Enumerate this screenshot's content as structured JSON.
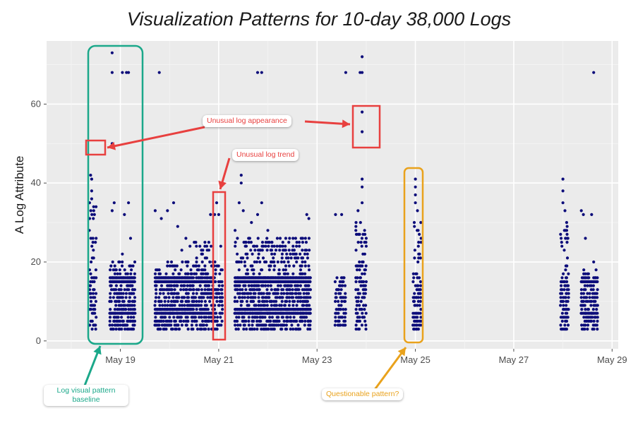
{
  "chart_data": {
    "type": "scatter",
    "title": "Visualization Patterns for 10-day 38,000 Logs",
    "xlabel": "",
    "ylabel": "A Log Attribute",
    "x_axis": {
      "type": "date",
      "range": [
        "2023-05-17T12:00",
        "2023-05-29T03:00"
      ],
      "ticks": [
        "May 19",
        "May 21",
        "May 23",
        "May 25",
        "May 27",
        "May 29"
      ],
      "tick_dates": [
        "2023-05-19",
        "2023-05-21",
        "2023-05-23",
        "2023-05-25",
        "2023-05-27",
        "2023-05-29"
      ]
    },
    "y_axis": {
      "range": [
        -2,
        76
      ],
      "ticks": [
        0,
        20,
        40,
        60
      ]
    },
    "grid": true,
    "point_color": "#0c0c7a",
    "point_groups": [
      {
        "x_start": "2023-05-18T09:00",
        "x_end": "2023-05-18T12:00",
        "y_min": 3,
        "y_max": 35,
        "dense_bands": []
      },
      {
        "x_start": "2023-05-18T19:00",
        "x_end": "2023-05-19T07:00",
        "y_min": 3,
        "y_max": 20,
        "dense_bands": [
          7,
          15,
          16
        ]
      },
      {
        "x_start": "2023-05-19T17:00",
        "x_end": "2023-05-20T12:00",
        "y_min": 3,
        "y_max": 20,
        "dense_bands": [
          7,
          8,
          15,
          16
        ]
      },
      {
        "x_start": "2023-05-20T12:00",
        "x_end": "2023-05-20T21:00",
        "y_min": 3,
        "y_max": 25,
        "dense_bands": [
          7,
          15
        ]
      },
      {
        "x_start": "2023-05-20T22:00",
        "x_end": "2023-05-21T02:00",
        "y_min": 3,
        "y_max": 20,
        "dense_bands": []
      },
      {
        "x_start": "2023-05-21T08:00",
        "x_end": "2023-05-22T21:00",
        "y_min": 3,
        "y_max": 26,
        "dense_bands": [
          7,
          8,
          15,
          16
        ]
      },
      {
        "x_start": "2023-05-23T09:00",
        "x_end": "2023-05-23T14:00",
        "y_min": 4,
        "y_max": 16,
        "dense_bands": []
      },
      {
        "x_start": "2023-05-23T19:00",
        "x_end": "2023-05-24T00:00",
        "y_min": 3,
        "y_max": 30,
        "dense_bands": []
      },
      {
        "x_start": "2023-05-24T23:00",
        "x_end": "2023-05-25T03:00",
        "y_min": 3,
        "y_max": 30,
        "dense_bands": []
      },
      {
        "x_start": "2023-05-27T23:00",
        "x_end": "2023-05-28T03:00",
        "y_min": 3,
        "y_max": 30,
        "dense_bands": []
      },
      {
        "x_start": "2023-05-28T09:00",
        "x_end": "2023-05-28T17:00",
        "y_min": 3,
        "y_max": 18,
        "dense_bands": [
          7,
          15
        ]
      }
    ],
    "scattered_points": [
      {
        "x": "2023-05-18T09:30",
        "y": 42
      },
      {
        "x": "2023-05-18T10:00",
        "y": 41
      },
      {
        "x": "2023-05-18T10:00",
        "y": 38
      },
      {
        "x": "2023-05-18T10:00",
        "y": 36
      },
      {
        "x": "2023-05-18T11:00",
        "y": 33
      },
      {
        "x": "2023-05-18T09:00",
        "y": 31
      },
      {
        "x": "2023-05-18T20:00",
        "y": 73
      },
      {
        "x": "2023-05-18T20:00",
        "y": 68
      },
      {
        "x": "2023-05-18T20:00",
        "y": 50
      },
      {
        "x": "2023-05-19T01:00",
        "y": 68
      },
      {
        "x": "2023-05-19T03:00",
        "y": 68
      },
      {
        "x": "2023-05-19T04:00",
        "y": 68
      },
      {
        "x": "2023-05-18T20:00",
        "y": 33
      },
      {
        "x": "2023-05-18T21:00",
        "y": 35
      },
      {
        "x": "2023-05-19T02:00",
        "y": 32
      },
      {
        "x": "2023-05-19T04:00",
        "y": 35
      },
      {
        "x": "2023-05-19T05:00",
        "y": 26
      },
      {
        "x": "2023-05-19T01:00",
        "y": 22
      },
      {
        "x": "2023-05-19T19:00",
        "y": 68
      },
      {
        "x": "2023-05-19T17:00",
        "y": 33
      },
      {
        "x": "2023-05-19T20:00",
        "y": 31
      },
      {
        "x": "2023-05-19T23:00",
        "y": 33
      },
      {
        "x": "2023-05-20T02:00",
        "y": 35
      },
      {
        "x": "2023-05-20T04:00",
        "y": 29
      },
      {
        "x": "2023-05-20T08:00",
        "y": 26
      },
      {
        "x": "2023-05-20T10:00",
        "y": 24
      },
      {
        "x": "2023-05-20T06:00",
        "y": 23
      },
      {
        "x": "2023-05-20T20:00",
        "y": 32
      },
      {
        "x": "2023-05-20T22:00",
        "y": 32
      },
      {
        "x": "2023-05-20T23:00",
        "y": 35
      },
      {
        "x": "2023-05-21T00:00",
        "y": 32
      },
      {
        "x": "2023-05-21T01:00",
        "y": 24
      },
      {
        "x": "2023-05-21T08:00",
        "y": 28
      },
      {
        "x": "2023-05-21T11:00",
        "y": 40
      },
      {
        "x": "2023-05-21T11:00",
        "y": 42
      },
      {
        "x": "2023-05-21T10:00",
        "y": 35
      },
      {
        "x": "2023-05-21T12:00",
        "y": 33
      },
      {
        "x": "2023-05-21T16:00",
        "y": 30
      },
      {
        "x": "2023-05-21T19:00",
        "y": 68
      },
      {
        "x": "2023-05-21T21:00",
        "y": 68
      },
      {
        "x": "2023-05-21T19:00",
        "y": 32
      },
      {
        "x": "2023-05-21T21:00",
        "y": 35
      },
      {
        "x": "2023-05-22T00:00",
        "y": 28
      },
      {
        "x": "2023-05-22T02:00",
        "y": 25
      },
      {
        "x": "2023-05-22T06:00",
        "y": 26
      },
      {
        "x": "2023-05-22T17:00",
        "y": 25
      },
      {
        "x": "2023-05-22T19:00",
        "y": 32
      },
      {
        "x": "2023-05-22T20:00",
        "y": 31
      },
      {
        "x": "2023-05-23T09:00",
        "y": 32
      },
      {
        "x": "2023-05-23T12:00",
        "y": 32
      },
      {
        "x": "2023-05-23T14:00",
        "y": 68
      },
      {
        "x": "2023-05-23T21:00",
        "y": 68
      },
      {
        "x": "2023-05-23T22:00",
        "y": 68
      },
      {
        "x": "2023-05-23T22:00",
        "y": 72
      },
      {
        "x": "2023-05-23T22:00",
        "y": 58
      },
      {
        "x": "2023-05-23T22:00",
        "y": 53
      },
      {
        "x": "2023-05-23T22:00",
        "y": 41
      },
      {
        "x": "2023-05-23T22:00",
        "y": 39
      },
      {
        "x": "2023-05-23T22:00",
        "y": 35
      },
      {
        "x": "2023-05-23T20:00",
        "y": 33
      },
      {
        "x": "2023-05-25T00:00",
        "y": 41
      },
      {
        "x": "2023-05-25T00:00",
        "y": 39
      },
      {
        "x": "2023-05-25T00:00",
        "y": 37
      },
      {
        "x": "2023-05-25T00:00",
        "y": 35
      },
      {
        "x": "2023-05-25T01:00",
        "y": 33
      },
      {
        "x": "2023-05-28T00:00",
        "y": 41
      },
      {
        "x": "2023-05-28T00:00",
        "y": 38
      },
      {
        "x": "2023-05-28T00:00",
        "y": 35
      },
      {
        "x": "2023-05-28T01:00",
        "y": 33
      },
      {
        "x": "2023-05-28T09:00",
        "y": 33
      },
      {
        "x": "2023-05-28T10:00",
        "y": 32
      },
      {
        "x": "2023-05-28T14:00",
        "y": 32
      },
      {
        "x": "2023-05-28T15:00",
        "y": 68
      },
      {
        "x": "2023-05-28T11:00",
        "y": 26
      },
      {
        "x": "2023-05-28T15:00",
        "y": 20
      }
    ],
    "annotations": [
      {
        "text": "Unusual log appearance",
        "color": "#e8403f"
      },
      {
        "text": "Unusual log trend",
        "color": "#e8403f"
      },
      {
        "text": "Log visual pattern baseline",
        "color": "#1ba88a"
      },
      {
        "text": "Questionable pattern?",
        "color": "#e9a21c"
      }
    ]
  },
  "callouts": {
    "appearance": "Unusual log appearance",
    "trend": "Unusual log trend",
    "baseline": "Log visual pattern baseline",
    "questionable": "Questionable pattern?"
  }
}
